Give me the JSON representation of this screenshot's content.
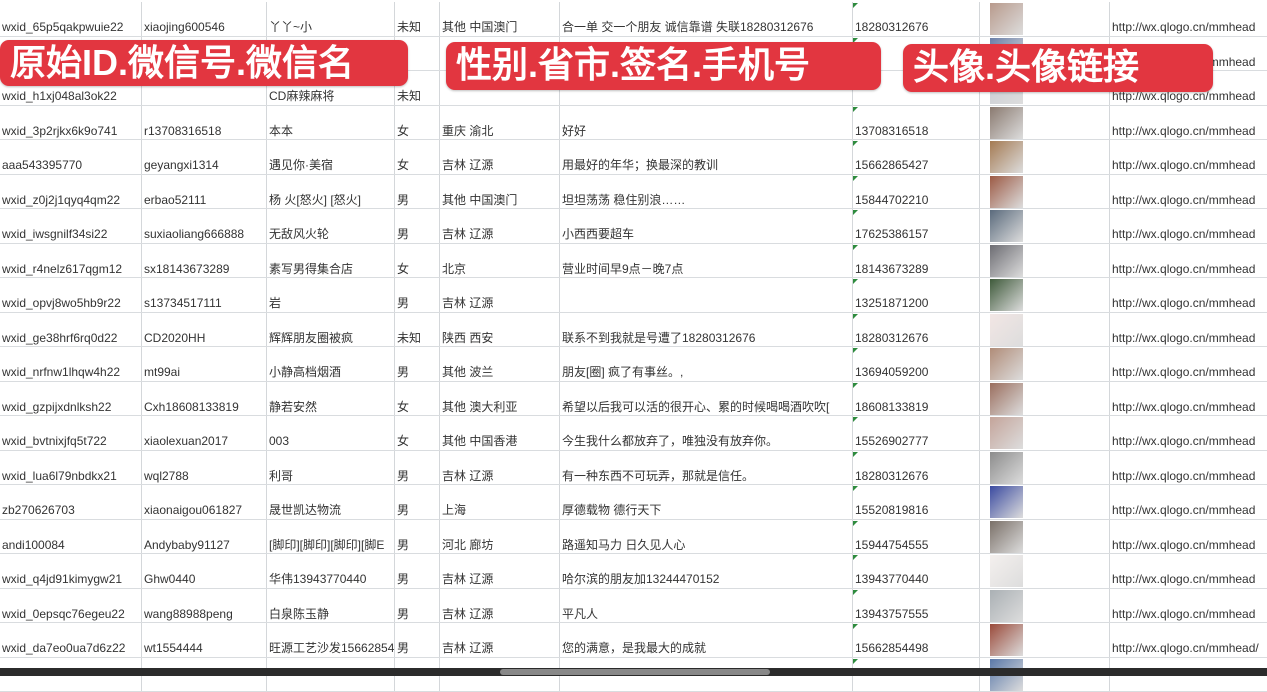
{
  "overlay_labels": [
    "原始ID.微信号.微信名",
    "性别.省市.签名.手机号",
    "头像.头像链接"
  ],
  "colors": {
    "label_bg": "#e23640",
    "label_text": "#ffffff",
    "grid": "#d9dcdf",
    "comment_marker": "#2e8b3e"
  },
  "rows": [
    {
      "id": "wxid_65p5qakpwuie22",
      "wechat": "xiaojing600546",
      "name": "丫丫~小",
      "gender": "未知",
      "region": "其他 中国澳门",
      "signature": "合一单 交一个朋友 诚信靠谱 失联18280312676",
      "phone": "18280312676",
      "avatar_color": "#b89a8c",
      "url": "http://wx.qlogo.cn/mmhead"
    },
    {
      "id": "",
      "wechat": "",
      "name": "",
      "gender": "",
      "region": "",
      "signature": "",
      "phone": "",
      "avatar_color": "#6a7fa8",
      "url": "http://wx.qlogo.cn/mmhead"
    },
    {
      "id": "wxid_h1xj048al3ok22",
      "wechat": "",
      "name": "CD麻辣麻将",
      "gender": "未知",
      "region": "",
      "signature": "",
      "phone": "",
      "avatar_color": "#c8ccd4",
      "url": "http://wx.qlogo.cn/mmhead"
    },
    {
      "id": "wxid_3p2rjkx6k9o741",
      "wechat": "r13708316518",
      "name": "本本",
      "gender": "女",
      "region": "重庆 渝北",
      "signature": "好好",
      "phone": "13708316518",
      "avatar_color": "#8a7a70",
      "url": "http://wx.qlogo.cn/mmhead"
    },
    {
      "id": "aaa543395770",
      "wechat": "geyangxi1314",
      "name": "遇见你·美宿",
      "gender": "女",
      "region": "吉林 辽源",
      "signature": "用最好的年华；换最深的教训",
      "phone": "15662865427",
      "avatar_color": "#a47a52",
      "url": "http://wx.qlogo.cn/mmhead"
    },
    {
      "id": "wxid_z0j2j1qyq4qm22",
      "wechat": "erbao52111",
      "name": "杨 火[怒火] [怒火]",
      "gender": "男",
      "region": "其他 中国澳门",
      "signature": "坦坦荡荡 稳住别浪……",
      "phone": "15844702210",
      "avatar_color": "#9c5a44",
      "url": "http://wx.qlogo.cn/mmhead"
    },
    {
      "id": "wxid_iwsgnilf34si22",
      "wechat": "suxiaoliang666888",
      "name": "无敌风火轮",
      "gender": "男",
      "region": "吉林 辽源",
      "signature": "小西西要超车",
      "phone": "17625386157",
      "avatar_color": "#5a6a7c",
      "url": "http://wx.qlogo.cn/mmhead"
    },
    {
      "id": "wxid_r4nelz617qgm12",
      "wechat": "sx18143673289",
      "name": "素写男得集合店",
      "gender": "女",
      "region": "北京",
      "signature": "营业时间早9点－晚7点",
      "phone": "18143673289",
      "avatar_color": "#6c6c72",
      "url": "http://wx.qlogo.cn/mmhead"
    },
    {
      "id": "wxid_opvj8wo5hb9r22",
      "wechat": "s13734517111",
      "name": "岩",
      "gender": "男",
      "region": "吉林 辽源",
      "signature": "",
      "phone": "13251871200",
      "avatar_color": "#3e5a3a",
      "url": "http://wx.qlogo.cn/mmhead"
    },
    {
      "id": "wxid_ge38hrf6rq0d22",
      "wechat": "CD2020HH",
      "name": "辉辉朋友圈被疯",
      "gender": "未知",
      "region": "陕西 西安",
      "signature": "联系不到我就是号遭了18280312676",
      "phone": "18280312676",
      "avatar_color": "#f2e6e4",
      "url": "http://wx.qlogo.cn/mmhead"
    },
    {
      "id": "wxid_nrfnw1lhqw4h22",
      "wechat": "mt99ai",
      "name": "小静高档烟酒",
      "gender": "男",
      "region": "其他 波兰",
      "signature": "朋友[圈] 疯了有事丝。,",
      "phone": "13694059200",
      "avatar_color": "#b08c78",
      "url": "http://wx.qlogo.cn/mmhead"
    },
    {
      "id": "wxid_gzpijxdnlksh22",
      "wechat": "Cxh18608133819",
      "name": "静若安然",
      "gender": "女",
      "region": "其他 澳大利亚",
      "signature": "希望以后我可以活的很开心、累的时候喝喝酒吹吹[",
      "phone": "18608133819",
      "avatar_color": "#9a6e5e",
      "url": "http://wx.qlogo.cn/mmhead"
    },
    {
      "id": "wxid_bvtnixjfq5t722",
      "wechat": "xiaolexuan2017",
      "name": "003",
      "gender": "女",
      "region": "其他 中国香港",
      "signature": "今生我什么都放弃了，唯独没有放弃你。",
      "phone": "15526902777",
      "avatar_color": "#c4a49a",
      "url": "http://wx.qlogo.cn/mmhead"
    },
    {
      "id": "wxid_lua6l79nbdkx21",
      "wechat": "wql2788",
      "name": "利哥",
      "gender": "男",
      "region": "吉林 辽源",
      "signature": "有一种东西不可玩弄，那就是信任。",
      "phone": "18280312676",
      "avatar_color": "#8c8c8c",
      "url": "http://wx.qlogo.cn/mmhead"
    },
    {
      "id": "zb270626703",
      "wechat": "xiaonaigou061827",
      "name": "晟世凯达物流",
      "gender": "男",
      "region": "上海",
      "signature": "厚德载物 德行天下",
      "phone": "15520819816",
      "avatar_color": "#3a4aa0",
      "url": "http://wx.qlogo.cn/mmhead"
    },
    {
      "id": "andi100084",
      "wechat": "Andybaby91127",
      "name": "[脚印][脚印][脚印][脚E",
      "gender": "男",
      "region": "河北 廊坊",
      "signature": "路遥知马力 日久见人心",
      "phone": "15944754555",
      "avatar_color": "#7a7068",
      "url": "http://wx.qlogo.cn/mmhead"
    },
    {
      "id": "wxid_q4jd91kimygw21",
      "wechat": "Ghw0440",
      "name": "华伟13943770440",
      "gender": "男",
      "region": "吉林 辽源",
      "signature": "哈尔滨的朋友加13244470152",
      "phone": "13943770440",
      "avatar_color": "#f4f0ee",
      "url": "http://wx.qlogo.cn/mmhead"
    },
    {
      "id": "wxid_0epsqc76egeu22",
      "wechat": "wang88988peng",
      "name": "白泉陈玉静",
      "gender": "男",
      "region": "吉林 辽源",
      "signature": "平凡人",
      "phone": "13943757555",
      "avatar_color": "#aab0b4",
      "url": "http://wx.qlogo.cn/mmhead"
    },
    {
      "id": "wxid_da7eo0ua7d6z22",
      "wechat": "wt1554444",
      "name": "旺源工艺沙发15662854",
      "gender": "男",
      "region": "吉林 辽源",
      "signature": "您的满意，是我最大的成就",
      "phone": "15662854498",
      "avatar_color": "#9a4a3a",
      "url": "http://wx.qlogo.cn/mmhead/"
    },
    {
      "id": "",
      "wechat": "",
      "name": "",
      "gender": "",
      "region": "",
      "signature": "",
      "phone": "",
      "avatar_color": "#5a78a8",
      "url": ""
    }
  ]
}
